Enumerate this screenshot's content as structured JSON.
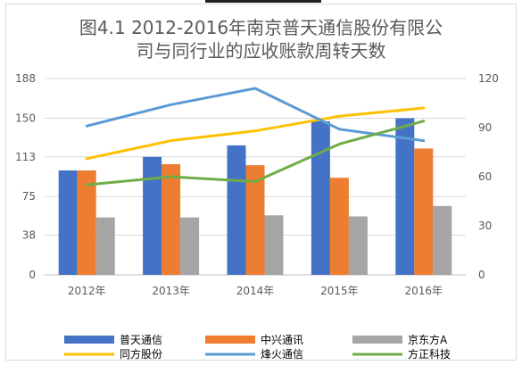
{
  "chart_data": {
    "type": "bar",
    "title_line1": "图4.1 2012-2016年南京普天通信股份有限公",
    "title_line2": "司与同行业的应收账款周转天数",
    "categories": [
      "2012年",
      "2013年",
      "2014年",
      "2015年",
      "2016年"
    ],
    "left_axis": {
      "ticks": [
        "0",
        "38",
        "75",
        "113",
        "150",
        "188"
      ],
      "ylim": [
        0,
        188
      ]
    },
    "right_axis": {
      "ticks": [
        "0",
        "30",
        "60",
        "90",
        "120"
      ],
      "ylim": [
        0,
        120
      ]
    },
    "bar_series": [
      {
        "name": "普天通信",
        "color": "#4472c4",
        "values": [
          100,
          113,
          124,
          147,
          150
        ]
      },
      {
        "name": "中兴通讯",
        "color": "#ed7d31",
        "values": [
          100,
          106,
          105,
          93,
          121
        ]
      },
      {
        "name": "京东方A",
        "color": "#a5a5a5",
        "values": [
          55,
          55,
          57,
          56,
          66
        ]
      }
    ],
    "line_series": [
      {
        "name": "同方股份",
        "color": "#ffc000",
        "values": [
          71,
          82,
          88,
          97,
          102
        ]
      },
      {
        "name": "烽火通信",
        "color": "#5b9bd5",
        "values": [
          91,
          104,
          114,
          89,
          82
        ]
      },
      {
        "name": "方正科技",
        "color": "#70ad47",
        "values": [
          55,
          60,
          57,
          80,
          94
        ]
      }
    ]
  }
}
